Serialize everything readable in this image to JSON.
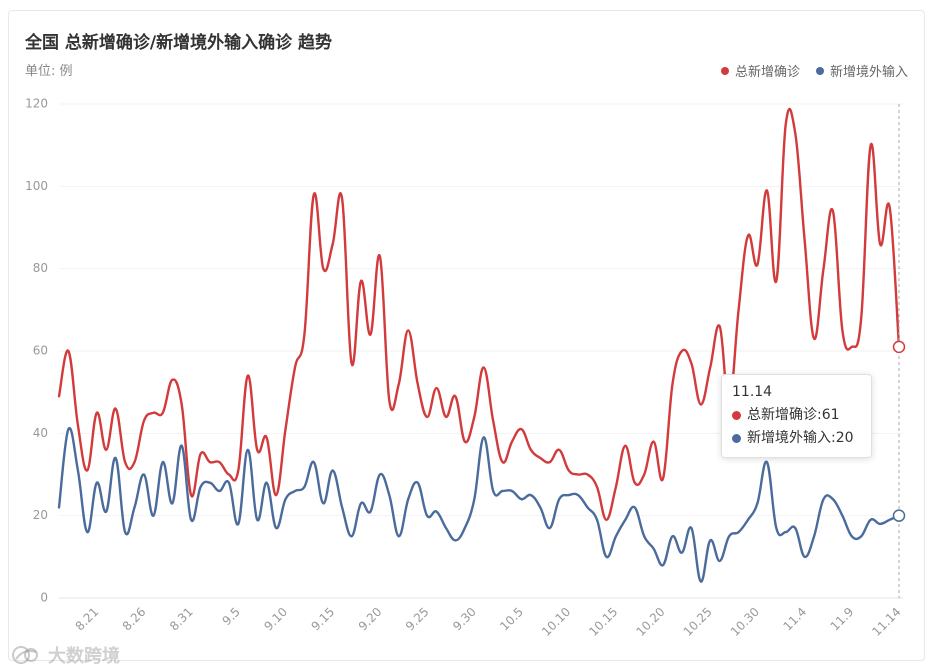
{
  "chart_data": {
    "type": "line",
    "title": "全国 总新增确诊/新增境外输入确诊 趋势",
    "subtitle": "单位: 例",
    "xlabel": "",
    "ylabel": "",
    "ylim": [
      0,
      120
    ],
    "yticks": [
      0,
      20,
      40,
      60,
      80,
      100,
      120
    ],
    "xtick_label_start": 4,
    "xtick_label_every": 5,
    "legend_position": "top-right",
    "grid": true,
    "categories": [
      "8.17",
      "8.18",
      "8.19",
      "8.20",
      "8.21",
      "8.22",
      "8.23",
      "8.24",
      "8.25",
      "8.26",
      "8.27",
      "8.28",
      "8.29",
      "8.30",
      "8.31",
      "9.1",
      "9.2",
      "9.3",
      "9.4",
      "9.5",
      "9.6",
      "9.7",
      "9.8",
      "9.9",
      "9.10",
      "9.11",
      "9.12",
      "9.13",
      "9.14",
      "9.15",
      "9.16",
      "9.17",
      "9.18",
      "9.19",
      "9.20",
      "9.21",
      "9.22",
      "9.23",
      "9.24",
      "9.25",
      "9.26",
      "9.27",
      "9.28",
      "9.29",
      "9.30",
      "10.1",
      "10.2",
      "10.3",
      "10.4",
      "10.5",
      "10.6",
      "10.7",
      "10.8",
      "10.9",
      "10.10",
      "10.11",
      "10.12",
      "10.13",
      "10.14",
      "10.15",
      "10.16",
      "10.17",
      "10.18",
      "10.19",
      "10.20",
      "10.21",
      "10.22",
      "10.23",
      "10.24",
      "10.25",
      "10.26",
      "10.27",
      "10.28",
      "10.29",
      "10.30",
      "10.31",
      "11.1",
      "11.2",
      "11.3",
      "11.4",
      "11.5",
      "11.6",
      "11.7",
      "11.8",
      "11.9",
      "11.10",
      "11.11",
      "11.12",
      "11.13",
      "11.14"
    ],
    "series": [
      {
        "name": "总新增确诊",
        "color": "#d23a3c",
        "values": [
          49,
          60,
          42,
          31,
          45,
          36,
          46,
          33,
          33,
          43,
          45,
          45,
          53,
          47,
          25,
          35,
          33,
          33,
          30,
          31,
          54,
          36,
          39,
          25,
          41,
          56,
          64,
          98,
          80,
          86,
          97,
          57,
          77,
          64,
          83,
          48,
          52,
          65,
          52,
          44,
          51,
          44,
          49,
          38,
          44,
          56,
          43,
          33,
          38,
          41,
          36,
          34,
          33,
          36,
          31,
          30,
          30,
          27,
          19,
          27,
          37,
          28,
          30,
          38,
          29,
          52,
          60,
          57,
          47,
          56,
          66,
          47,
          70,
          88,
          81,
          99,
          77,
          115,
          113,
          87,
          63,
          80,
          94,
          65,
          61,
          68,
          110,
          86,
          95,
          61
        ]
      },
      {
        "name": "新增境外输入",
        "color": "#4a6b9b",
        "values": [
          22,
          41,
          31,
          16,
          28,
          21,
          34,
          16,
          22,
          30,
          20,
          33,
          23,
          37,
          19,
          27,
          28,
          26,
          28,
          18,
          36,
          19,
          28,
          17,
          24,
          26,
          27,
          33,
          23,
          31,
          22,
          15,
          23,
          21,
          30,
          25,
          15,
          24,
          28,
          20,
          21,
          17,
          14,
          17,
          24,
          39,
          26,
          26,
          26,
          24,
          25,
          22,
          17,
          24,
          25,
          25,
          22,
          19,
          10,
          15,
          19,
          22,
          15,
          12,
          8,
          15,
          11,
          17,
          4,
          14,
          9,
          15,
          16,
          19,
          23,
          33,
          17,
          16,
          17,
          10,
          15,
          24,
          24,
          20,
          15,
          15,
          19,
          18,
          19,
          20
        ]
      }
    ]
  },
  "tooltip": {
    "date": "11.14",
    "separator": ": ",
    "rows": [
      {
        "series": "总新增确诊",
        "value": "61"
      },
      {
        "series": "新增境外输入",
        "value": "20"
      }
    ]
  },
  "watermark": {
    "text": "大数跨境",
    "icon": "brand-logo-icon"
  }
}
